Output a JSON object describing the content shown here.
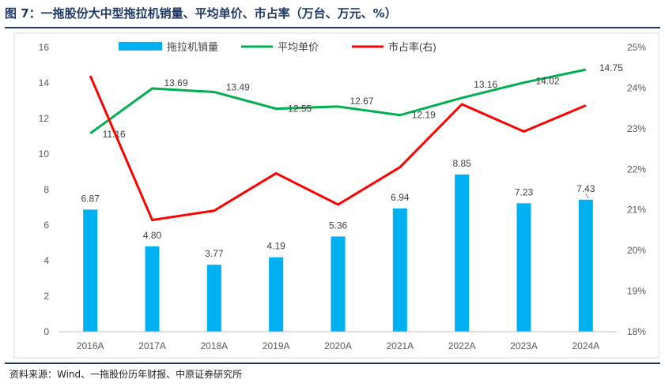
{
  "title": "图 7：一拖股份大中型拖拉机销量、平均单价、市占率（万台、万元、%）",
  "source": "资料来源：Wind、一拖股份历年财报、中原证券研究所",
  "chart_data": {
    "type": "bar+line",
    "categories": [
      "2016A",
      "2017A",
      "2018A",
      "2019A",
      "2020A",
      "2021A",
      "2022A",
      "2023A",
      "2024A"
    ],
    "left_axis": {
      "ylim": [
        0,
        16
      ],
      "ticks": [
        "0",
        "2",
        "4",
        "6",
        "8",
        "10",
        "12",
        "14",
        "16"
      ]
    },
    "right_axis": {
      "ylim": [
        18,
        25
      ],
      "ticks": [
        "18%",
        "19%",
        "20%",
        "21%",
        "22%",
        "23%",
        "24%",
        "25%"
      ]
    },
    "series": [
      {
        "name": "拖拉机销量",
        "type": "bar",
        "axis": "left",
        "color": "#00b0f0",
        "values": [
          6.87,
          4.8,
          3.77,
          4.19,
          5.36,
          6.94,
          8.85,
          7.23,
          7.43
        ],
        "labels": [
          "6.87",
          "4.80",
          "3.77",
          "4.19",
          "5.36",
          "6.94",
          "8.85",
          "7.23",
          "7.43"
        ]
      },
      {
        "name": "平均单价",
        "type": "line",
        "axis": "left",
        "color": "#00b050",
        "values": [
          11.16,
          13.69,
          13.49,
          12.55,
          12.67,
          12.19,
          13.16,
          14.02,
          14.75
        ],
        "labels": [
          "11.16",
          "13.69",
          "13.49",
          "12.55",
          "12.67",
          "12.19",
          "13.16",
          "14.02",
          "14.75"
        ]
      },
      {
        "name": "市占率(右)",
        "type": "line",
        "axis": "right",
        "color": "#ff0000",
        "values": [
          24.3,
          20.75,
          20.98,
          21.9,
          21.13,
          22.05,
          23.6,
          22.93,
          23.57
        ]
      }
    ],
    "legend": "top",
    "grid": false
  }
}
